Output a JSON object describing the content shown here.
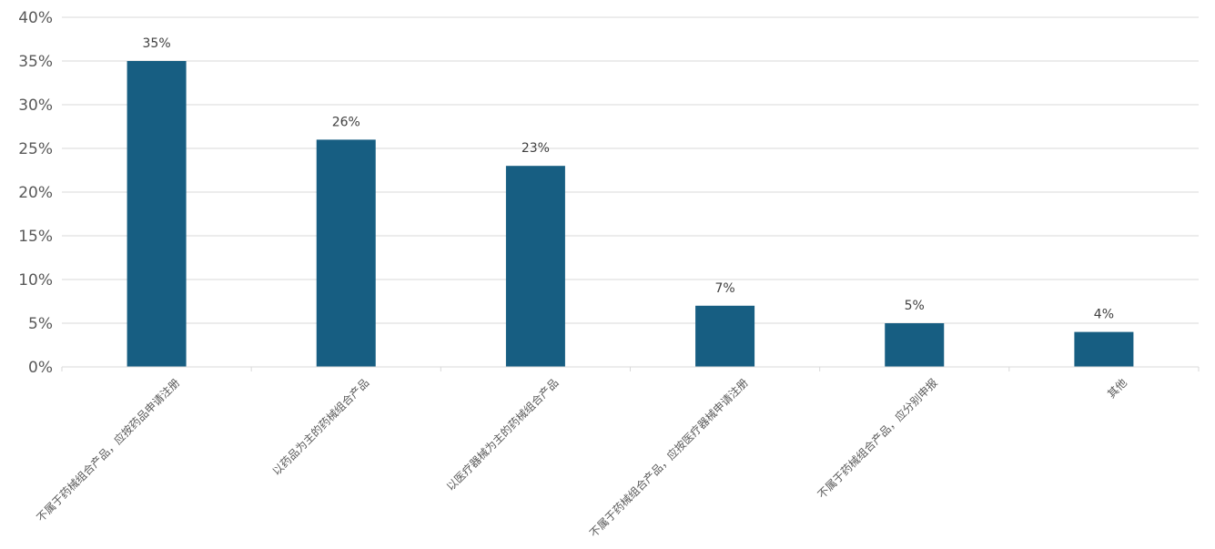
{
  "chart_data": {
    "type": "bar",
    "title": "",
    "xlabel": "",
    "ylabel": "",
    "categories": [
      "不属于药械组合产品，应按药品申请注册",
      "以药品为主的药械组合产品",
      "以医疗器械为主的药械组合产品",
      "不属于药械组合产品，应按医疗器械申请注册",
      "不属于药械组合产品，应分别申报",
      "其他"
    ],
    "values": [
      35,
      26,
      23,
      7,
      5,
      4
    ],
    "data_labels": [
      "35%",
      "26%",
      "23%",
      "7%",
      "5%",
      "4%"
    ],
    "ylim": [
      0,
      40
    ],
    "yticks": [
      0,
      5,
      10,
      15,
      20,
      25,
      30,
      35,
      40
    ],
    "ytick_labels": [
      "0%",
      "5%",
      "10%",
      "15%",
      "20%",
      "25%",
      "30%",
      "35%",
      "40%"
    ],
    "bar_color": "#175e82",
    "grid": true,
    "legend": "none"
  }
}
